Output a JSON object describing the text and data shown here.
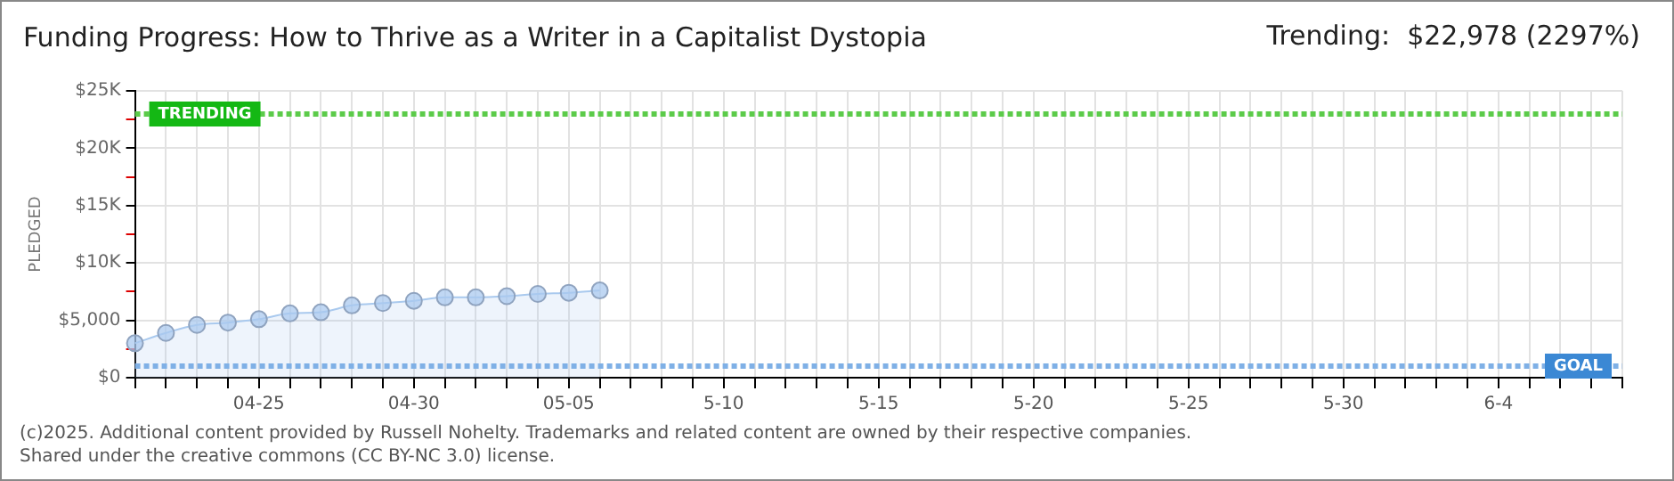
{
  "chart_data": {
    "type": "area",
    "title": "Funding Progress: How to Thrive as a Writer in a Capitalist Dystopia",
    "ylabel": "PLEDGED",
    "annotations": [
      "Trending:  $22,978 (2297%)",
      "(c)2025. Additional content provided by Russell Nohelty. Trademarks and related content are owned by their respective companies.",
      "Shared under the creative commons (CC BY-NC 3.0) license."
    ],
    "categories": [
      null,
      null,
      null,
      null,
      "04-25",
      null,
      null,
      null,
      null,
      "04-30",
      null,
      null,
      null,
      null,
      "05-05",
      null,
      null,
      null,
      null,
      "5-10",
      null,
      null,
      null,
      null,
      "5-15",
      null,
      null,
      null,
      null,
      "5-20",
      null,
      null,
      null,
      null,
      "5-25",
      null,
      null,
      null,
      null,
      "5-30",
      null,
      null,
      null,
      null,
      "6-4",
      null,
      null,
      null,
      null
    ],
    "series": [
      {
        "color": "#a9c9ee",
        "values": [
          3000,
          3900,
          4600,
          4800,
          5100,
          5600,
          5700,
          6300,
          6500,
          6700,
          7000,
          7000,
          7100,
          7300,
          7400,
          7600,
          null,
          null,
          null,
          null,
          null,
          null,
          null,
          null,
          null,
          null,
          null,
          null,
          null,
          null,
          null,
          null,
          null,
          null,
          null,
          null,
          null,
          null,
          null,
          null,
          null,
          null,
          null,
          null,
          null,
          null,
          null,
          null,
          null
        ]
      }
    ],
    "ylim": [
      0,
      25000
    ],
    "yticks": [
      {
        "value": 0,
        "label": "$0"
      },
      {
        "value": 2500,
        "label": null
      },
      {
        "value": 5000,
        "label": "$5,000"
      },
      {
        "value": 7500,
        "label": null
      },
      {
        "value": 10000,
        "label": "$10K"
      },
      {
        "value": 12500,
        "label": null
      },
      {
        "value": 15000,
        "label": "$15K"
      },
      {
        "value": 17500,
        "label": null
      },
      {
        "value": 20000,
        "label": "$20K"
      },
      {
        "value": 22500,
        "label": null
      },
      {
        "value": 25000,
        "label": "$25K"
      }
    ],
    "grid": true,
    "marker": "circle",
    "ref_lines": [
      {
        "axis": "y",
        "value": 22978,
        "label": "TRENDING",
        "color": "#5ccb4a"
      },
      {
        "axis": "y",
        "value": 1000,
        "label": "GOAL",
        "color": "#7fb0e6"
      }
    ]
  }
}
